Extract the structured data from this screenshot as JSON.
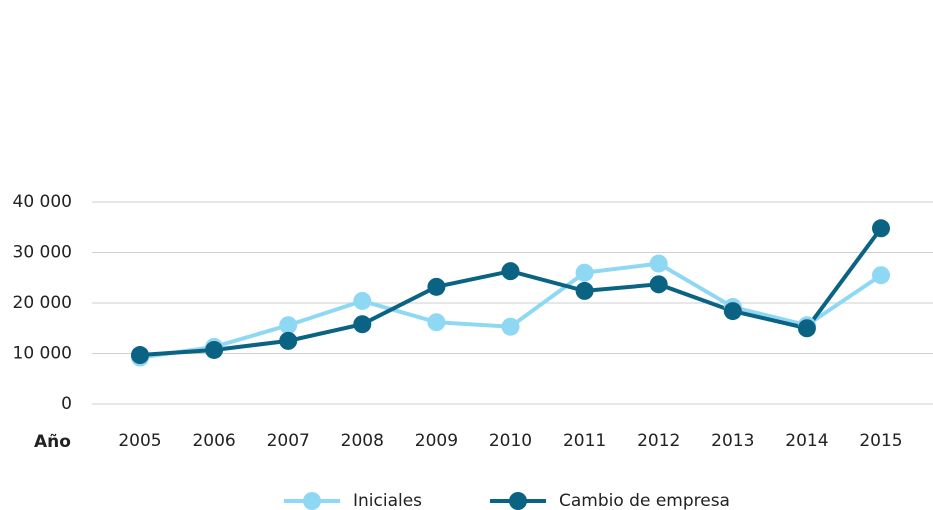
{
  "chart_data": {
    "type": "line",
    "x_label": "Año",
    "categories": [
      "2005",
      "2006",
      "2007",
      "2008",
      "2009",
      "2010",
      "2011",
      "2012",
      "2013",
      "2014",
      "2015"
    ],
    "series": [
      {
        "name": "Iniciales",
        "color": "#8fd8f4",
        "values": [
          9200,
          11300,
          15600,
          20400,
          16200,
          15300,
          26000,
          27800,
          19200,
          15600,
          25500
        ]
      },
      {
        "name": "Cambio de empresa",
        "color": "#0b6383",
        "values": [
          9700,
          10700,
          12500,
          15800,
          23200,
          26300,
          22400,
          23700,
          18400,
          15000,
          34800
        ]
      }
    ],
    "ylim": [
      0,
      40000
    ],
    "yticks": [
      0,
      {
        "value": 10000,
        "label": "10 000"
      },
      {
        "value": 20000,
        "label": "20 000"
      },
      {
        "value": 30000,
        "label": "30 000"
      },
      {
        "value": 40000,
        "label": "40 000"
      }
    ],
    "grid": true
  }
}
